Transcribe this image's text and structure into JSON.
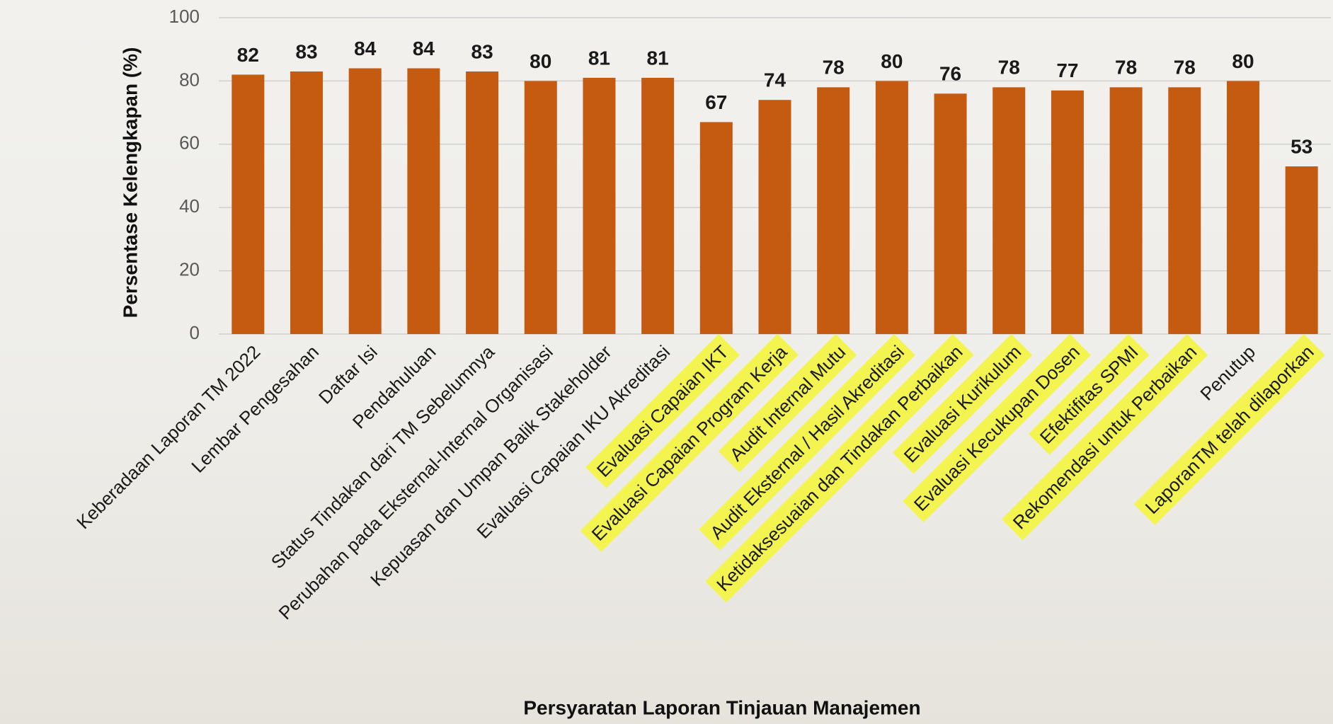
{
  "chart_data": {
    "type": "bar",
    "x_label": "Persyaratan Laporan Tinjauan Manajemen",
    "y_label": "Persentase Kelengkapan (%)",
    "categories": [
      "Keberadaan Laporan TM 2022",
      "Lembar Pengesahan",
      "Daftar Isi",
      "Pendahuluan",
      "Status Tindakan dari TM Sebelumnya",
      "Perubahan pada Eksternal-Internal Organisasi",
      "Kepuasan dan Umpan Balik Stakeholder",
      "Evaluasi Capaian IKU Akreditasi",
      "Evaluasi Capaian IKT",
      "Evaluasi Capaian Program Kerja",
      "Audit Internal Mutu",
      "Audit Eksternal / Hasil Akreditasi",
      "Ketidaksesuaian dan Tindakan Perbaikan",
      "Evaluasi Kurikulum",
      "Evaluasi Kecukupan Dosen",
      "Efektifitas SPMI",
      "Rekomendasi untuk Perbaikan",
      "Penutup",
      "LaporanTM telah dilaporkan"
    ],
    "values": [
      82,
      83,
      84,
      84,
      83,
      80,
      81,
      81,
      67,
      74,
      78,
      80,
      76,
      78,
      77,
      78,
      78,
      80,
      53
    ],
    "color": "#c55a11",
    "label_highlight": [
      false,
      false,
      false,
      false,
      false,
      false,
      false,
      false,
      true,
      true,
      true,
      true,
      true,
      true,
      true,
      true,
      true,
      false,
      true
    ],
    "highlight_color": "#f4f451",
    "ylim": [
      0,
      100
    ],
    "yticks": [
      0,
      20,
      40,
      60,
      80,
      100
    ],
    "grid": true
  }
}
